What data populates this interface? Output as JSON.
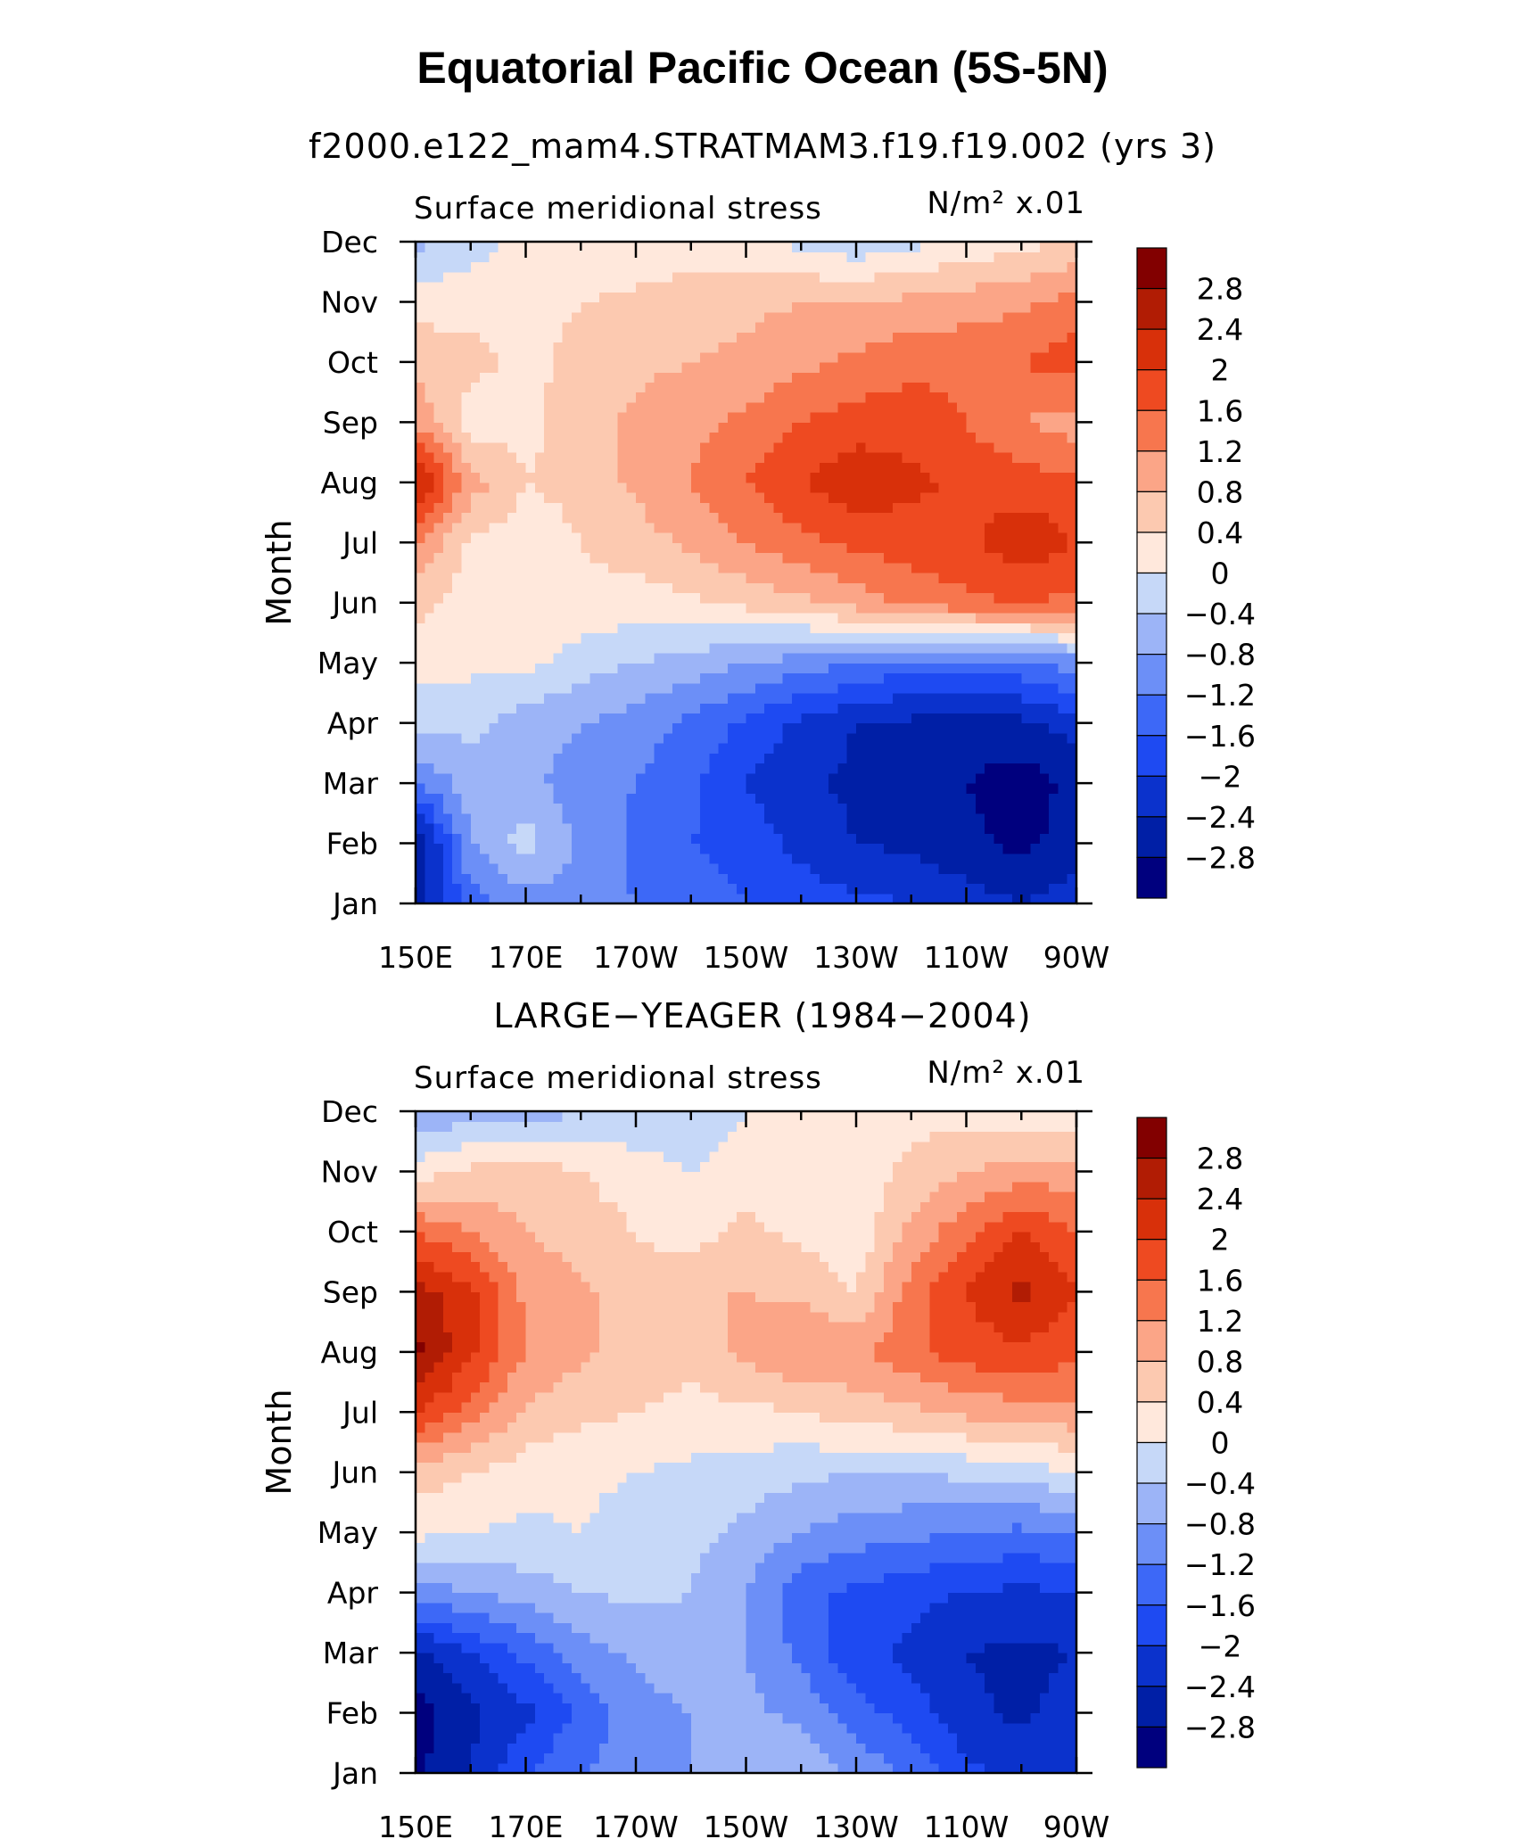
{
  "page": {
    "title": "Equatorial Pacific Ocean (5S-5N)"
  },
  "contour_levels": [
    -2.8,
    -2.4,
    -2,
    -1.6,
    -1.2,
    -0.8,
    -0.4,
    0,
    0.4,
    0.8,
    1.2,
    1.6,
    2,
    2.4,
    2.8
  ],
  "colorbar": {
    "labels": [
      "2.8",
      "2.4",
      "2",
      "1.6",
      "1.2",
      "0.8",
      "0.4",
      "0",
      "−0.4",
      "−0.8",
      "−1.2",
      "−1.6",
      "−2",
      "−2.4",
      "−2.8"
    ],
    "colors": [
      "#00007e",
      "#001fa6",
      "#0b32cc",
      "#1e4af2",
      "#3d68f7",
      "#6c8ff7",
      "#9cb4f7",
      "#c6d8f8",
      "#ffe8dc",
      "#fcc9b0",
      "#fba587",
      "#f7764e",
      "#ee4a21",
      "#d8300a",
      "#b11c04",
      "#820000"
    ]
  },
  "chart_data": [
    {
      "type": "heatmap",
      "title": "f2000.e122_mam4.STRATMAM3.f19.f19.002 (yrs 3)",
      "label_left": "Surface meridional stress",
      "label_right": "N/m² x.01",
      "xlabel": "",
      "ylabel": "Month",
      "x_ticks": [
        "150E",
        "170E",
        "170W",
        "150W",
        "130W",
        "110W",
        "90W"
      ],
      "y_ticks": [
        "Jan",
        "Feb",
        "Mar",
        "Apr",
        "May",
        "Jun",
        "Jul",
        "Aug",
        "Sep",
        "Oct",
        "Nov",
        "Dec"
      ],
      "x": [
        150,
        160,
        170,
        180,
        190,
        200,
        210,
        220,
        230,
        240,
        250,
        260,
        270
      ],
      "y": [
        "Jan",
        "Feb",
        "Mar",
        "Apr",
        "May",
        "Jun",
        "Jul",
        "Aug",
        "Sep",
        "Oct",
        "Nov",
        "Dec"
      ],
      "z": [
        [
          -2.6,
          -1.4,
          -1.0,
          -1.0,
          -1.2,
          -1.4,
          -1.6,
          -1.8,
          -1.9,
          -2.0,
          -2.2,
          -2.4,
          -2.2
        ],
        [
          -2.9,
          -0.8,
          -0.2,
          -0.9,
          -1.3,
          -1.6,
          -1.8,
          -2.1,
          -2.4,
          -2.5,
          -2.7,
          -2.9,
          -2.6
        ],
        [
          -1.2,
          -0.6,
          -0.7,
          -1.0,
          -1.2,
          -1.5,
          -2.0,
          -2.3,
          -2.5,
          -2.6,
          -2.8,
          -3.0,
          -2.7
        ],
        [
          -0.3,
          -0.3,
          -0.6,
          -0.8,
          -1.0,
          -1.3,
          -1.7,
          -2.1,
          -2.4,
          -2.5,
          -2.6,
          -2.5,
          -2.2
        ],
        [
          0.2,
          0.1,
          0.1,
          -0.2,
          -0.4,
          -0.6,
          -0.8,
          -1.0,
          -1.2,
          -1.4,
          -1.4,
          -1.3,
          -1.0
        ],
        [
          0.5,
          0.2,
          0.3,
          0.3,
          0.2,
          0.3,
          0.5,
          0.7,
          1.0,
          1.3,
          1.5,
          1.6,
          1.5
        ],
        [
          1.3,
          0.3,
          0.2,
          0.4,
          0.6,
          0.9,
          1.2,
          1.5,
          1.7,
          1.8,
          1.9,
          2.3,
          2.0
        ],
        [
          2.6,
          1.0,
          0.4,
          0.5,
          0.9,
          1.2,
          1.6,
          2.0,
          2.3,
          2.1,
          1.9,
          1.8,
          1.7
        ],
        [
          1.1,
          0.2,
          0.3,
          0.6,
          0.9,
          1.1,
          1.3,
          1.6,
          1.8,
          1.8,
          1.6,
          1.2,
          1.0
        ],
        [
          0.7,
          0.5,
          0.3,
          0.5,
          0.7,
          0.8,
          0.9,
          1.1,
          1.3,
          1.5,
          1.5,
          1.6,
          1.8
        ],
        [
          0.2,
          0.3,
          0.3,
          0.4,
          0.5,
          0.6,
          0.7,
          0.8,
          0.8,
          0.9,
          1.0,
          1.1,
          1.4
        ],
        [
          -0.5,
          -0.2,
          0.1,
          0.1,
          0.1,
          0.2,
          0.1,
          -0.1,
          -0.3,
          -0.1,
          0.1,
          0.3,
          0.4
        ]
      ],
      "levels_range": [
        -2.8,
        2.8
      ]
    },
    {
      "type": "heatmap",
      "title": "LARGE−YEAGER (1984−2004)",
      "label_left": "Surface meridional stress",
      "label_right": "N/m² x.01",
      "xlabel": "",
      "ylabel": "Month",
      "x_ticks": [
        "150E",
        "170E",
        "170W",
        "150W",
        "130W",
        "110W",
        "90W"
      ],
      "y_ticks": [
        "Jan",
        "Feb",
        "Mar",
        "Apr",
        "May",
        "Jun",
        "Jul",
        "Aug",
        "Sep",
        "Oct",
        "Nov",
        "Dec"
      ],
      "x": [
        150,
        160,
        170,
        180,
        190,
        200,
        210,
        220,
        230,
        240,
        250,
        260,
        270
      ],
      "y": [
        "Jan",
        "Feb",
        "Mar",
        "Apr",
        "May",
        "Jun",
        "Jul",
        "Aug",
        "Sep",
        "Oct",
        "Nov",
        "Dec"
      ],
      "z": [
        [
          -2.9,
          -2.4,
          -1.6,
          -1.2,
          -1.0,
          -0.8,
          -0.5,
          -0.4,
          -0.9,
          -1.3,
          -1.9,
          -2.1,
          -2.0
        ],
        [
          -3.0,
          -2.5,
          -2.1,
          -1.5,
          -1.0,
          -0.8,
          -0.7,
          -0.9,
          -1.4,
          -1.8,
          -2.3,
          -2.5,
          -2.2
        ],
        [
          -2.5,
          -2.0,
          -1.5,
          -1.0,
          -0.7,
          -0.5,
          -0.8,
          -1.3,
          -1.9,
          -2.1,
          -2.4,
          -2.5,
          -2.4
        ],
        [
          -1.0,
          -0.8,
          -0.6,
          -0.4,
          -0.3,
          -0.4,
          -0.8,
          -1.5,
          -1.7,
          -1.9,
          -2.0,
          -2.1,
          -2.0
        ],
        [
          0.1,
          0.0,
          -0.1,
          0.0,
          -0.2,
          -0.3,
          -0.5,
          -0.8,
          -1.0,
          -1.1,
          -1.2,
          -1.3,
          -1.2
        ],
        [
          0.6,
          0.4,
          0.2,
          0.1,
          0.0,
          -0.1,
          -0.2,
          -0.3,
          -0.4,
          -0.4,
          -0.3,
          -0.2,
          0.0
        ],
        [
          2.1,
          1.4,
          0.7,
          0.5,
          0.4,
          0.3,
          0.3,
          0.4,
          0.6,
          0.7,
          0.9,
          1.0,
          1.1
        ],
        [
          2.9,
          2.1,
          1.2,
          0.9,
          0.6,
          0.5,
          0.9,
          1.2,
          1.1,
          1.5,
          1.8,
          1.9,
          1.7
        ],
        [
          2.6,
          2.1,
          1.1,
          0.9,
          0.5,
          0.8,
          0.8,
          0.7,
          0.4,
          1.4,
          2.0,
          2.5,
          2.0
        ],
        [
          1.6,
          1.2,
          0.8,
          0.6,
          0.4,
          0.2,
          0.5,
          0.3,
          0.1,
          0.9,
          1.5,
          2.0,
          1.6
        ],
        [
          0.2,
          0.5,
          0.6,
          0.4,
          0.2,
          0.0,
          0.2,
          0.1,
          0.2,
          0.5,
          0.8,
          1.0,
          1.0
        ],
        [
          -0.8,
          -0.6,
          -0.6,
          -0.4,
          -0.3,
          -0.3,
          0.0,
          0.0,
          0.2,
          0.3,
          0.2,
          0.1,
          0.1
        ]
      ],
      "levels_range": [
        -2.8,
        2.8
      ]
    }
  ]
}
